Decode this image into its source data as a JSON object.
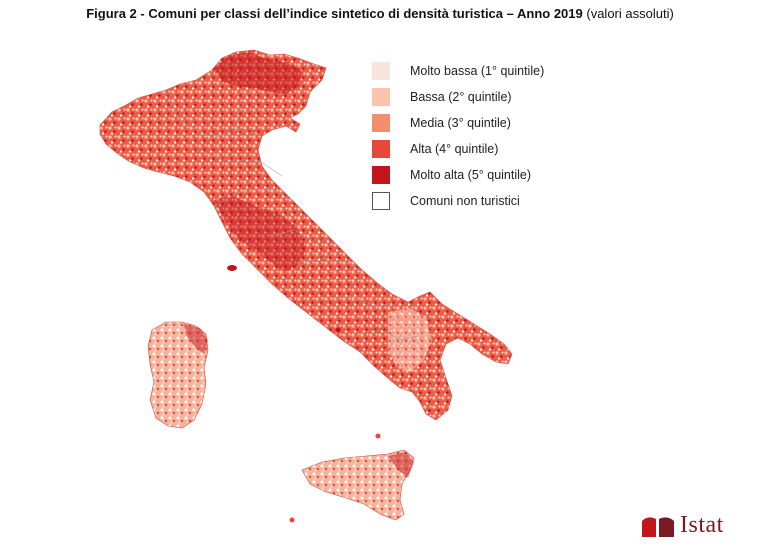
{
  "figure": {
    "title_bold": "Figura 2 - Comuni per classi dell’indice sintetico di densità turistica – Anno 2019",
    "title_normal": "(valori assoluti)"
  },
  "legend": {
    "items": [
      {
        "label": "Molto bassa (1° quintile)",
        "color": "#f7e4dc"
      },
      {
        "label": "Bassa (2° quintile)",
        "color": "#f9c3ae"
      },
      {
        "label": "Media (3° quintile)",
        "color": "#f38e6c"
      },
      {
        "label": "Alta (4° quintile)",
        "color": "#e8483a"
      },
      {
        "label": "Molto alta (5° quintile)",
        "color": "#c3161c"
      },
      {
        "label": "Comuni non turistici",
        "color": "#ffffff"
      }
    ]
  },
  "map": {
    "regions": [
      "italy-mainland",
      "sardinia",
      "sicily",
      "elba"
    ],
    "base_color": "#ee5f4a",
    "border_color": "#9e9e9e"
  },
  "logo": {
    "text": "Istat",
    "color": "#7a1a22"
  }
}
